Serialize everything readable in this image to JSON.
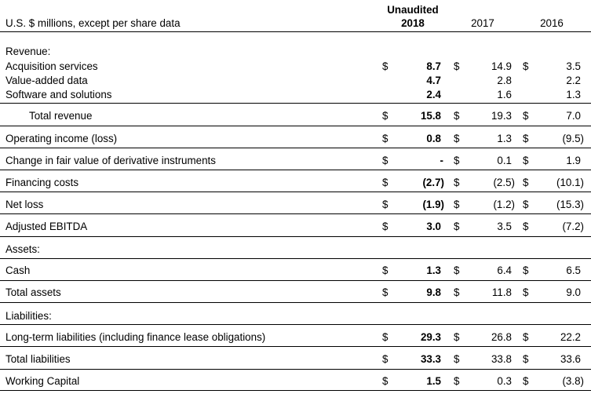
{
  "header": {
    "label": "U.S. $ millions, except per share data",
    "unaudited": "Unaudited",
    "col2018": "2018",
    "col2017": "2017",
    "col2016": "2016"
  },
  "sections": {
    "revenue": "Revenue:",
    "assets": "Assets:",
    "liabilities": "Liabilities:"
  },
  "rows": {
    "acq": {
      "label": "Acquisition services",
      "d1": "$",
      "v2018": "8.7",
      "d2": "$",
      "v2017": "14.9",
      "d3": "$",
      "v2016": "3.5"
    },
    "vad": {
      "label": "Value-added data",
      "v2018": "4.7",
      "v2017": "2.8",
      "v2016": "2.2"
    },
    "sw": {
      "label": "Software and solutions",
      "v2018": "2.4",
      "v2017": "1.6",
      "v2016": "1.3"
    },
    "totrev": {
      "label": "Total revenue",
      "d1": "$",
      "v2018": "15.8",
      "d2": "$",
      "v2017": "19.3",
      "d3": "$",
      "v2016": "7.0"
    },
    "opinc": {
      "label": "Operating income (loss)",
      "d1": "$",
      "v2018": "0.8",
      "d2": "$",
      "v2017": "1.3",
      "d3": "$",
      "v2016": "(9.5)"
    },
    "fv": {
      "label": "Change in fair value of derivative instruments",
      "d1": "$",
      "v2018": "-",
      "d2": "$",
      "v2017": "0.1",
      "d3": "$",
      "v2016": "1.9"
    },
    "fin": {
      "label": "Financing costs",
      "d1": "$",
      "v2018": "(2.7)",
      "d2": "$",
      "v2017": "(2.5)",
      "d3": "$",
      "v2016": "(10.1)"
    },
    "netloss": {
      "label": "Net loss",
      "d1": "$",
      "v2018": "(1.9)",
      "d2": "$",
      "v2017": "(1.2)",
      "d3": "$",
      "v2016": "(15.3)"
    },
    "ebitda": {
      "label": "Adjusted EBITDA",
      "d1": "$",
      "v2018": "3.0",
      "d2": "$",
      "v2017": "3.5",
      "d3": "$",
      "v2016": "(7.2)"
    },
    "cash": {
      "label": "Cash",
      "d1": "$",
      "v2018": "1.3",
      "d2": "$",
      "v2017": "6.4",
      "d3": "$",
      "v2016": "6.5"
    },
    "totass": {
      "label": "Total assets",
      "d1": "$",
      "v2018": "9.8",
      "d2": "$",
      "v2017": "11.8",
      "d3": "$",
      "v2016": "9.0"
    },
    "ltl": {
      "label": "Long-term liabilities (including finance lease obligations)",
      "d1": "$",
      "v2018": "29.3",
      "d2": "$",
      "v2017": "26.8",
      "d3": "$",
      "v2016": "22.2"
    },
    "totliab": {
      "label": "Total liabilities",
      "d1": "$",
      "v2018": "33.3",
      "d2": "$",
      "v2017": "33.8",
      "d3": "$",
      "v2016": "33.6"
    },
    "wc": {
      "label": "Working Capital",
      "d1": "$",
      "v2018": "1.5",
      "d2": "$",
      "v2017": "0.3",
      "d3": "$",
      "v2016": "(3.8)"
    }
  }
}
